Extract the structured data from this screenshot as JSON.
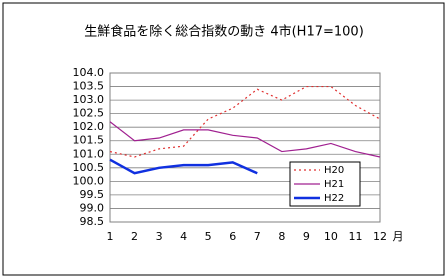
{
  "chart_data": {
    "type": "line",
    "title": "生鮮食品を除く総合指数の動き 4市(H17=100)",
    "x_label": "月",
    "categories": [
      "1",
      "2",
      "3",
      "4",
      "5",
      "6",
      "7",
      "8",
      "9",
      "10",
      "11",
      "12"
    ],
    "ylim": [
      98.5,
      104.0
    ],
    "yticks": [
      {
        "value": 98.5,
        "label": "98.5"
      },
      {
        "value": 99.0,
        "label": "99.0"
      },
      {
        "value": 99.5,
        "label": "99.5"
      },
      {
        "value": 100.0,
        "label": "100.0"
      },
      {
        "value": 100.5,
        "label": "100.5"
      },
      {
        "value": 101.0,
        "label": "101.0"
      },
      {
        "value": 101.5,
        "label": "101.5"
      },
      {
        "value": 102.0,
        "label": "102.0"
      },
      {
        "value": 102.5,
        "label": "102.5"
      },
      {
        "value": 103.0,
        "label": "103.0"
      },
      {
        "value": 103.5,
        "label": "103.5"
      },
      {
        "value": 104.0,
        "label": "104.0"
      }
    ],
    "grid": true,
    "legend": "lower right",
    "series": [
      {
        "name": "H20",
        "color": "#e03030",
        "dash": "dotted",
        "values": [
          101.1,
          100.9,
          101.2,
          101.3,
          102.3,
          102.7,
          103.4,
          103.0,
          103.5,
          103.5,
          102.8,
          102.3
        ]
      },
      {
        "name": "H21",
        "color": "#a02090",
        "dash": "solid",
        "values": [
          102.2,
          101.5,
          101.6,
          101.9,
          101.9,
          101.7,
          101.6,
          101.1,
          101.2,
          101.4,
          101.1,
          100.9
        ]
      },
      {
        "name": "H22",
        "color": "#1030e0",
        "dash": "thick",
        "values": [
          100.8,
          100.3,
          100.5,
          100.6,
          100.6,
          100.7,
          100.3,
          null,
          null,
          null,
          null,
          null
        ]
      }
    ]
  }
}
